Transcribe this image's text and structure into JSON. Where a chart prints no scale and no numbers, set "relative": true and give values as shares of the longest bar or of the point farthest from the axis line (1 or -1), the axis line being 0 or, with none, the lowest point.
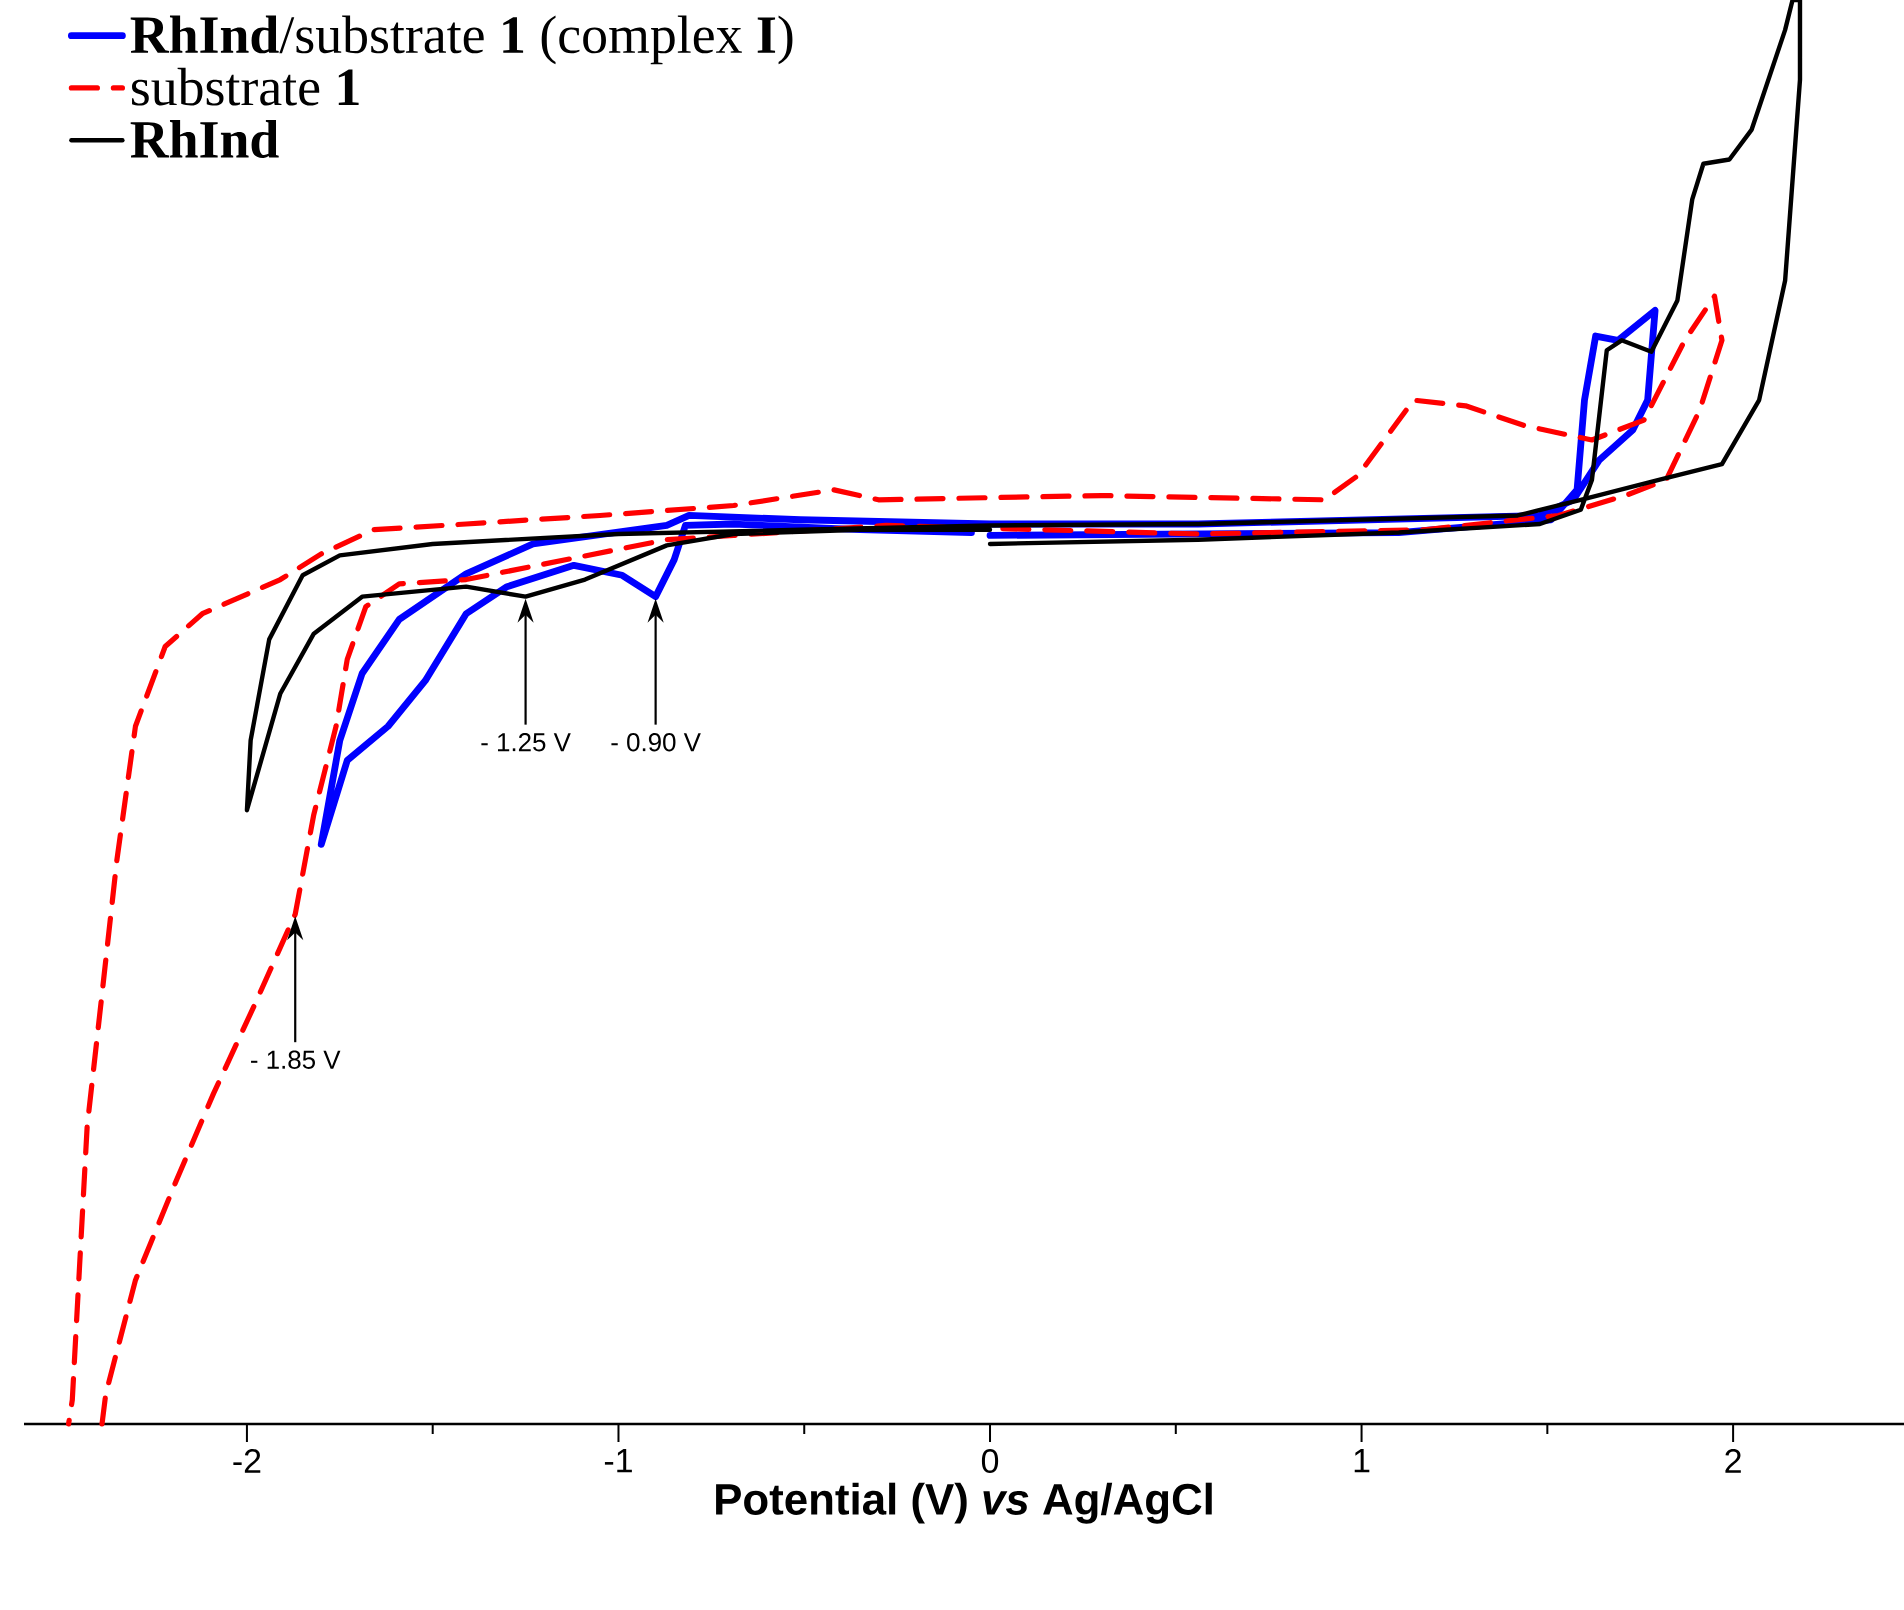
{
  "chart_data": {
    "type": "line",
    "relative": true,
    "xlabel": "Potential (V) *vs* Ag/AgCl",
    "xlim": [
      -2.6,
      2.46
    ],
    "xticks": [
      -2,
      -1,
      0,
      1,
      2
    ],
    "legend": "top left",
    "marker": "none",
    "series": [
      {
        "name": "**RhInd**/substrate **1** (complex **I**)",
        "color": "#0000ff",
        "line_style": "solid",
        "x": [
          0,
          1.1,
          1.51,
          1.58,
          1.6,
          1.63,
          1.69,
          1.79,
          1.77,
          1.73,
          1.64,
          1.57,
          1.48,
          0.56,
          0,
          -0.51,
          -0.81,
          -0.87,
          -1.23,
          -1.41,
          -1.59,
          -1.69,
          -1.75,
          -1.8,
          -1.73,
          -1.62,
          -1.52,
          -1.41,
          -1.3,
          -1.12,
          -0.99,
          -0.9,
          -0.85,
          -0.82,
          -0.69,
          -0.35,
          -0.05
        ],
        "values": [
          0.624,
          0.626,
          0.635,
          0.656,
          0.719,
          0.764,
          0.761,
          0.782,
          0.719,
          0.698,
          0.677,
          0.649,
          0.638,
          0.632,
          0.632,
          0.635,
          0.638,
          0.631,
          0.618,
          0.597,
          0.565,
          0.527,
          0.48,
          0.407,
          0.466,
          0.49,
          0.522,
          0.569,
          0.588,
          0.603,
          0.596,
          0.581,
          0.607,
          0.631,
          0.632,
          0.628,
          0.626
        ]
      },
      {
        "name": "substrate **1**",
        "color": "#ff0000",
        "line_style": "dashed",
        "x": [
          -2.39,
          -2.38,
          -2.3,
          -2.19,
          -2.09,
          -1.98,
          -1.87,
          -1.82,
          -1.76,
          -1.73,
          -1.68,
          -1.59,
          -1.41,
          -0.87,
          -0.69,
          -0.28,
          0.56,
          1.17,
          1.53,
          1.71,
          1.82,
          1.91,
          1.97,
          1.95,
          1.87,
          1.76,
          1.62,
          1.44,
          1.28,
          1.14,
          0.99,
          0.9,
          0.3,
          -0.3,
          -0.42,
          -0.69,
          -1.05,
          -1.41,
          -1.66,
          -1.8,
          -1.91,
          -2.12,
          -2.22,
          -2.3,
          -2.35,
          -2.39,
          -2.43,
          -2.47,
          -2.48
        ],
        "values": [
          0,
          0.021,
          0.101,
          0.171,
          0.232,
          0.294,
          0.358,
          0.428,
          0.49,
          0.537,
          0.574,
          0.59,
          0.593,
          0.621,
          0.624,
          0.631,
          0.625,
          0.628,
          0.638,
          0.652,
          0.663,
          0.712,
          0.761,
          0.792,
          0.761,
          0.705,
          0.691,
          0.701,
          0.715,
          0.719,
          0.666,
          0.649,
          0.652,
          0.649,
          0.656,
          0.645,
          0.638,
          0.632,
          0.628,
          0.611,
          0.593,
          0.569,
          0.546,
          0.49,
          0.396,
          0.302,
          0.209,
          0.017,
          0
        ]
      },
      {
        "name": "**RhInd**",
        "color": "#000000",
        "line_style": "solid",
        "x": [
          0,
          0.56,
          1.1,
          1.48,
          1.59,
          1.62,
          1.66,
          1.7,
          1.78,
          1.85,
          1.89,
          1.92,
          1.99,
          2.05,
          2.14,
          2.16,
          2.18,
          2.18,
          2.14,
          2.07,
          1.97,
          1.8,
          1.59,
          1.42,
          0.56,
          0,
          -0.51,
          -1.0,
          -1.5,
          -1.75,
          -1.85,
          -1.94,
          -1.99,
          -2.0,
          -1.91,
          -1.82,
          -1.69,
          -1.41,
          -1.25,
          -1.09,
          -0.87,
          -0.69,
          -0.35,
          0
        ],
        "values": [
          0.618,
          0.621,
          0.626,
          0.632,
          0.642,
          0.663,
          0.754,
          0.761,
          0.753,
          0.789,
          0.86,
          0.885,
          0.888,
          0.909,
          0.979,
          1.0,
          1.0,
          0.944,
          0.803,
          0.719,
          0.674,
          0.663,
          0.649,
          0.638,
          0.632,
          0.631,
          0.628,
          0.625,
          0.618,
          0.61,
          0.596,
          0.551,
          0.48,
          0.431,
          0.513,
          0.555,
          0.581,
          0.588,
          0.581,
          0.593,
          0.617,
          0.625,
          0.628,
          0.628
        ]
      }
    ],
    "annotations": [
      {
        "text": "- 1.25 V",
        "x": -1.25,
        "y": 0.581
      },
      {
        "text": "- 0.90 V",
        "x": -0.9,
        "y": 0.581
      },
      {
        "text": "- 1.85 V",
        "x": -1.87,
        "y": 0.358
      }
    ]
  }
}
